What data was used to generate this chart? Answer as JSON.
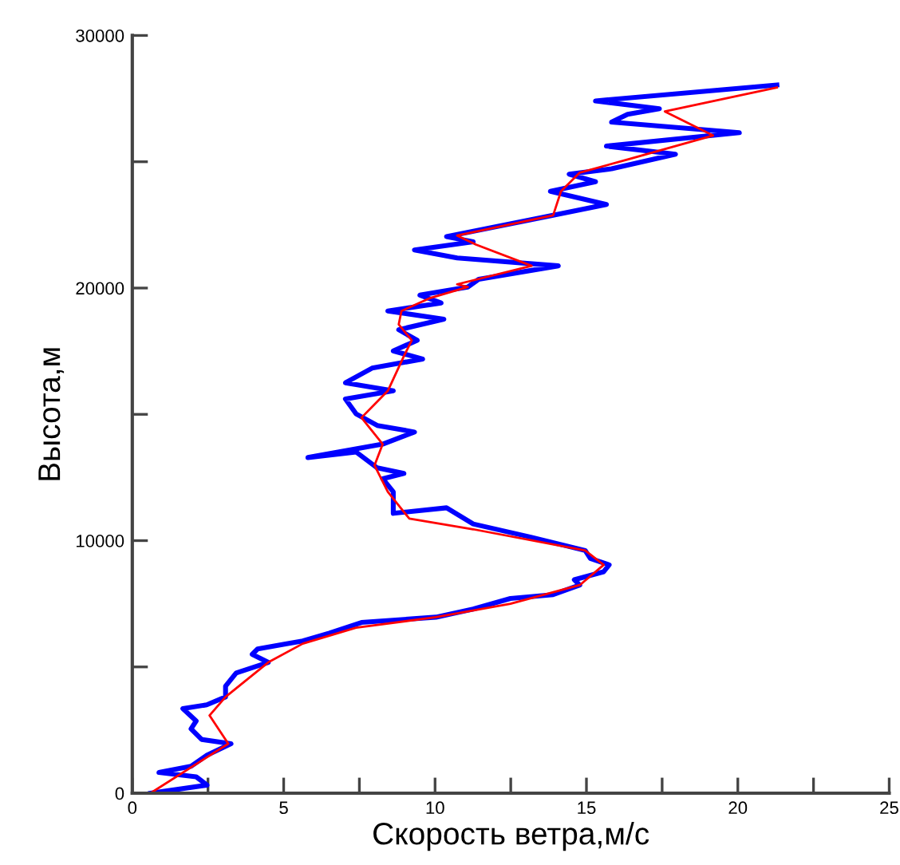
{
  "chart_data": {
    "type": "line",
    "xlabel": "Скорость ветра,м/с",
    "ylabel": "Высота,м",
    "xlim": [
      0,
      25
    ],
    "ylim": [
      0,
      30000
    ],
    "xticks": [
      0,
      {
        "value": 2.5,
        "label": null
      },
      5,
      {
        "value": 7.5,
        "label": null
      },
      10,
      {
        "value": 12.5,
        "label": null
      },
      15,
      {
        "value": 17.5,
        "label": null
      },
      20,
      {
        "value": 22.5,
        "label": null
      },
      25
    ],
    "yticks": [
      0,
      {
        "value": 5000,
        "label": null
      },
      10000,
      {
        "value": 15000,
        "label": null
      },
      20000,
      {
        "value": 25000,
        "label": null
      },
      30000
    ],
    "grid": false,
    "legend": false,
    "marker": "none",
    "line_style": "solid",
    "series": [
      {
        "color": "#0000ff",
        "x": [
          0.6,
          2.47,
          2.11,
          0.88,
          1.94,
          2.46,
          3.26,
          2.29,
          1.94,
          2.11,
          1.67,
          2.46,
          3.08,
          3.08,
          3.43,
          4.49,
          3.96,
          4.14,
          5.1,
          5.63,
          6.51,
          7.57,
          10.03,
          11.26,
          12.49,
          13.9,
          14.78,
          14.6,
          15.57,
          15.75,
          15.13,
          14.96,
          13.19,
          11.26,
          10.38,
          8.62,
          8.62,
          8.27,
          8.97,
          8.09,
          7.39,
          5.8,
          8.27,
          9.32,
          8.09,
          7.39,
          7.04,
          8.62,
          7.04,
          7.92,
          9.59,
          8.62,
          9.41,
          8.8,
          10.29,
          8.44,
          10.2,
          9.5,
          11.08,
          11.44,
          14.07,
          10.73,
          9.32,
          11.26,
          10.38,
          13.9,
          15.66,
          13.81,
          15.3,
          14.43,
          15.83,
          17.94,
          15.66,
          20.05,
          15.83,
          16.36,
          17.41,
          15.3,
          21.29
        ],
        "values": [
          0,
          320,
          650,
          820,
          1070,
          1500,
          1960,
          2130,
          2550,
          2860,
          3350,
          3500,
          3810,
          4240,
          4760,
          5180,
          5500,
          5710,
          5920,
          6030,
          6340,
          6760,
          6970,
          7290,
          7710,
          7860,
          8240,
          8450,
          8770,
          9040,
          9290,
          9610,
          10130,
          10660,
          11300,
          11080,
          11930,
          12450,
          12660,
          12880,
          13510,
          13290,
          13820,
          14300,
          14560,
          15020,
          15610,
          15930,
          16250,
          16830,
          17190,
          17510,
          17930,
          18350,
          18770,
          19090,
          19410,
          19720,
          20040,
          20350,
          20880,
          21190,
          21510,
          21830,
          22040,
          22880,
          23310,
          23830,
          24210,
          24510,
          24720,
          25300,
          25620,
          26150,
          26570,
          26880,
          27100,
          27410,
          28040
        ]
      },
      {
        "color": "#ff0000",
        "x": [
          0.6,
          3.17,
          2.55,
          3.08,
          4.49,
          5.63,
          7.39,
          10.03,
          12.49,
          14.78,
          15.57,
          14.96,
          11.26,
          9.15,
          8.44,
          8.0,
          8.27,
          7.57,
          8.44,
          8.97,
          9.23,
          8.8,
          8.89,
          9.85,
          11.08,
          10.73,
          13.19,
          11.35,
          10.73,
          13.9,
          14.16,
          14.78,
          16.36,
          19.18,
          17.59,
          21.29
        ],
        "values": [
          0,
          1960,
          3080,
          3810,
          5180,
          5920,
          6550,
          6970,
          7500,
          8240,
          9040,
          9610,
          10450,
          10870,
          11930,
          12980,
          13820,
          14870,
          15930,
          17300,
          17930,
          18560,
          19090,
          19610,
          20040,
          20150,
          20880,
          21720,
          22080,
          22880,
          23830,
          24570,
          25090,
          26040,
          26990,
          27940
        ]
      }
    ]
  }
}
